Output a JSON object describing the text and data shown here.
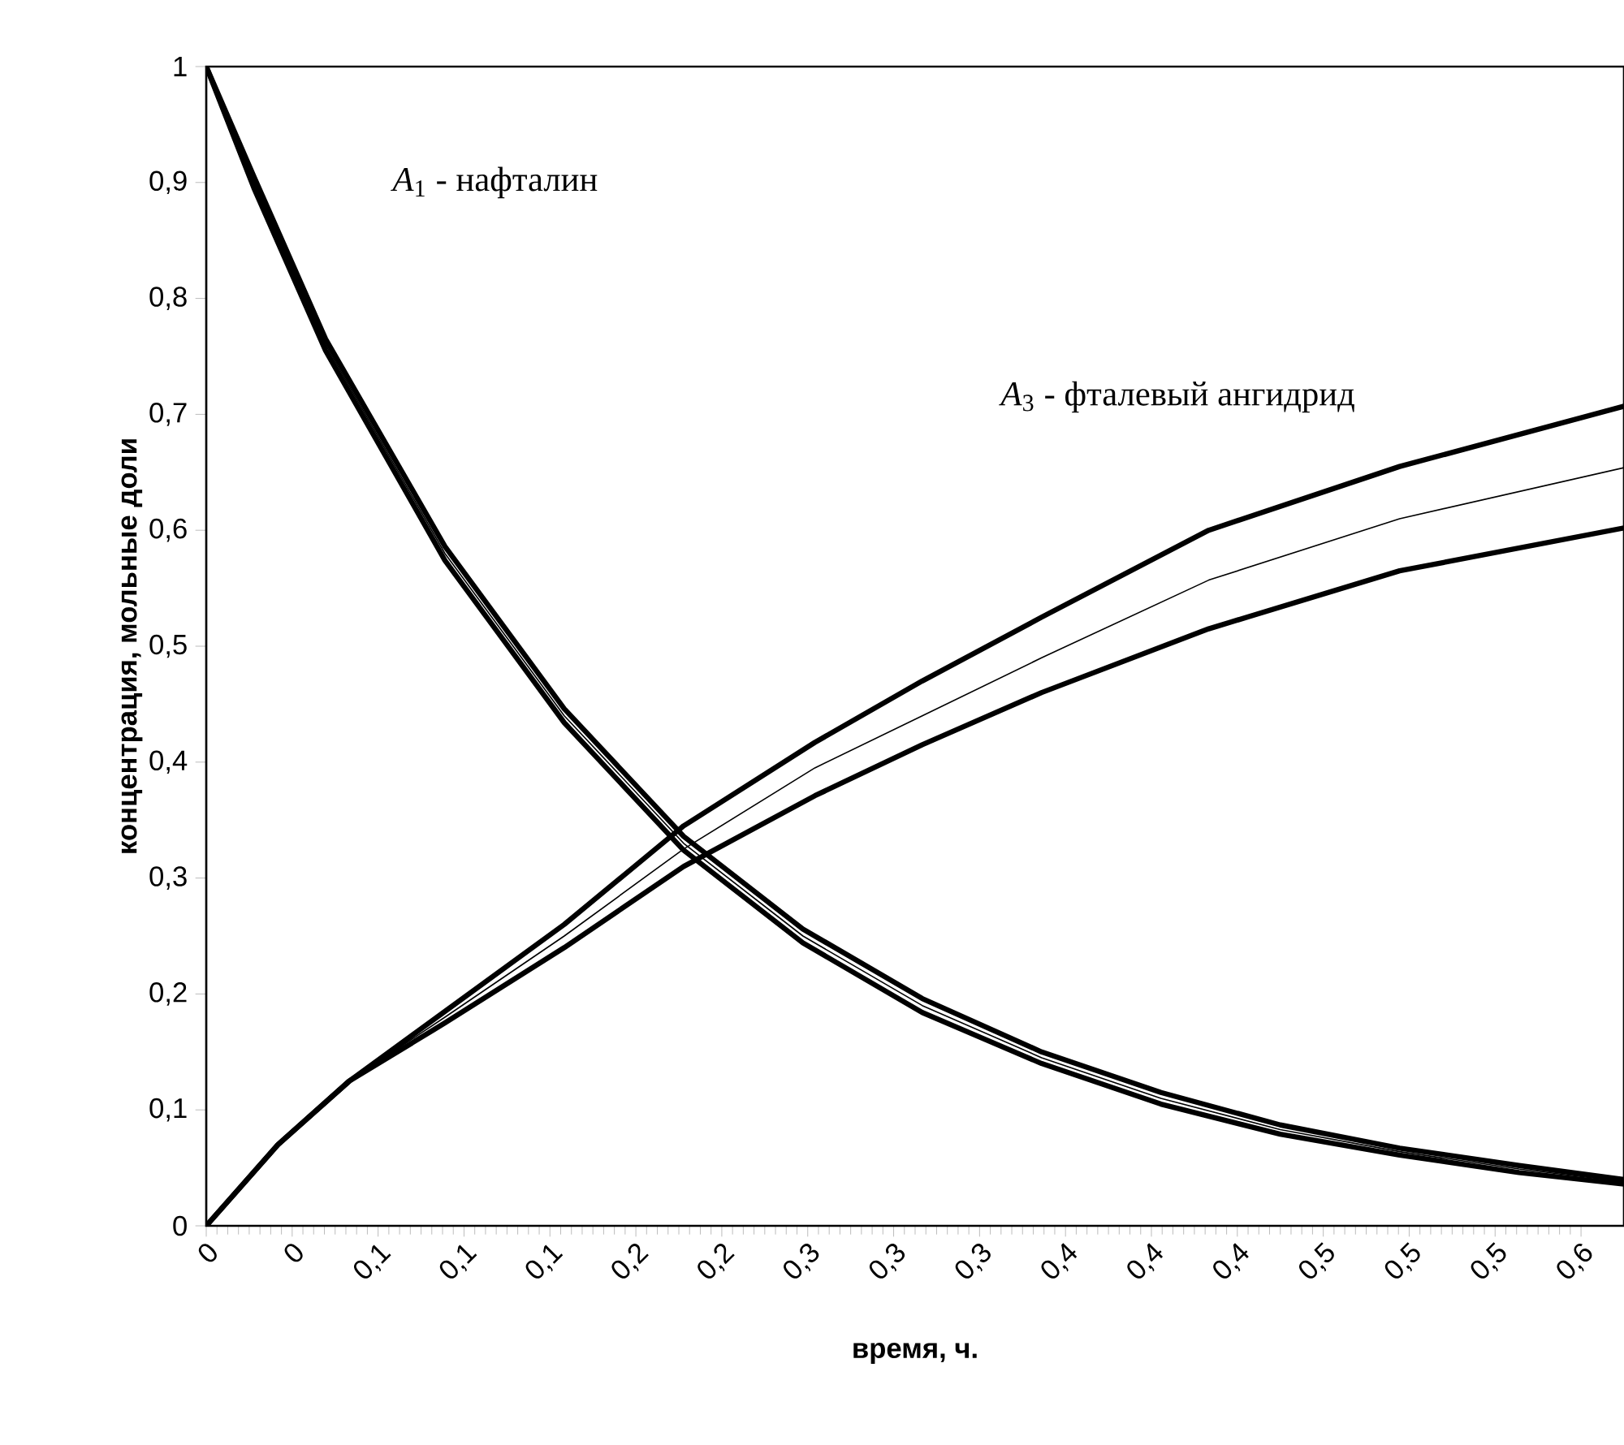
{
  "chart_data": {
    "type": "line",
    "xlabel": "время, ч.",
    "ylabel": "концентрация, мольные доли",
    "xlim": [
      0,
      0.594
    ],
    "ylim": [
      0,
      1
    ],
    "xticks": [
      {
        "value": 0,
        "label": "0"
      },
      {
        "value": 0.036,
        "label": "0"
      },
      {
        "value": 0.072,
        "label": "0,1"
      },
      {
        "value": 0.108,
        "label": "0,1"
      },
      {
        "value": 0.144,
        "label": "0,1"
      },
      {
        "value": 0.18,
        "label": "0,2"
      },
      {
        "value": 0.216,
        "label": "0,2"
      },
      {
        "value": 0.252,
        "label": "0,3"
      },
      {
        "value": 0.288,
        "label": "0,3"
      },
      {
        "value": 0.324,
        "label": "0,3"
      },
      {
        "value": 0.36,
        "label": "0,4"
      },
      {
        "value": 0.396,
        "label": "0,4"
      },
      {
        "value": 0.432,
        "label": "0,4"
      },
      {
        "value": 0.468,
        "label": "0,5"
      },
      {
        "value": 0.504,
        "label": "0,5"
      },
      {
        "value": 0.54,
        "label": "0,5"
      },
      {
        "value": 0.576,
        "label": "0,6"
      }
    ],
    "yticks": [
      0,
      {
        "value": 0.1,
        "label": "0,1"
      },
      {
        "value": 0.2,
        "label": "0,2"
      },
      {
        "value": 0.3,
        "label": "0,3"
      },
      {
        "value": 0.4,
        "label": "0,4"
      },
      {
        "value": 0.5,
        "label": "0,5"
      },
      {
        "value": 0.6,
        "label": "0,6"
      },
      {
        "value": 0.7,
        "label": "0,7"
      },
      {
        "value": 0.8,
        "label": "0,8"
      },
      {
        "value": 0.9,
        "label": "0,9"
      },
      1
    ],
    "grid": false,
    "marker": "none",
    "line_style": "solid",
    "annotations": [
      "*A*$_{1}$ - нафталин",
      "*A*$_{3}$ - фталевый ангидрид"
    ],
    "series": [
      {
        "color": "#000000",
        "x": [
          0,
          0.02,
          0.05,
          0.1,
          0.15,
          0.2,
          0.25,
          0.3,
          0.35,
          0.4,
          0.45,
          0.5,
          0.55,
          0.594
        ],
        "values": [
          1,
          0.905,
          0.765,
          0.586,
          0.446,
          0.336,
          0.256,
          0.196,
          0.15,
          0.115,
          0.087,
          0.067,
          0.052,
          0.04
        ]
      },
      {
        "color": "#000000",
        "x": [
          0,
          0.02,
          0.05,
          0.1,
          0.15,
          0.2,
          0.25,
          0.3,
          0.35,
          0.4,
          0.45,
          0.5,
          0.55,
          0.594
        ],
        "values": [
          1,
          0.9,
          0.76,
          0.58,
          0.44,
          0.33,
          0.25,
          0.19,
          0.145,
          0.11,
          0.083,
          0.064,
          0.049,
          0.038
        ]
      },
      {
        "color": "#000000",
        "x": [
          0,
          0.02,
          0.05,
          0.1,
          0.15,
          0.2,
          0.25,
          0.3,
          0.35,
          0.4,
          0.45,
          0.5,
          0.55,
          0.594
        ],
        "values": [
          1,
          0.895,
          0.755,
          0.574,
          0.434,
          0.324,
          0.244,
          0.184,
          0.14,
          0.105,
          0.079,
          0.061,
          0.046,
          0.036
        ]
      },
      {
        "color": "#000000",
        "x": [
          0,
          0.03,
          0.06,
          0.1,
          0.15,
          0.2,
          0.255,
          0.3,
          0.35,
          0.42,
          0.5,
          0.594
        ],
        "values": [
          0,
          0.07,
          0.125,
          0.185,
          0.26,
          0.345,
          0.417,
          0.47,
          0.525,
          0.6,
          0.655,
          0.707
        ]
      },
      {
        "color": "#000000",
        "x": [
          0,
          0.03,
          0.06,
          0.1,
          0.15,
          0.2,
          0.255,
          0.3,
          0.35,
          0.42,
          0.5,
          0.594
        ],
        "values": [
          0,
          0.07,
          0.125,
          0.18,
          0.25,
          0.325,
          0.395,
          0.44,
          0.49,
          0.557,
          0.61,
          0.654
        ]
      },
      {
        "color": "#000000",
        "x": [
          0,
          0.03,
          0.06,
          0.1,
          0.15,
          0.2,
          0.255,
          0.3,
          0.35,
          0.42,
          0.5,
          0.594
        ],
        "values": [
          0,
          0.07,
          0.125,
          0.175,
          0.24,
          0.31,
          0.371,
          0.415,
          0.46,
          0.515,
          0.565,
          0.602
        ]
      }
    ]
  }
}
